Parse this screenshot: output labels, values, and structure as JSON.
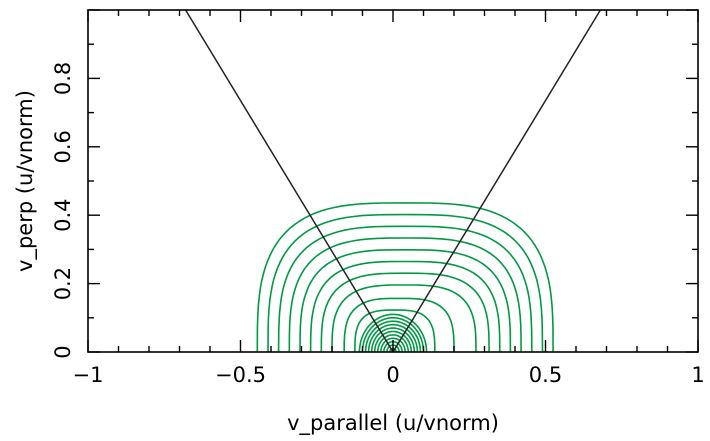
{
  "chart_data": {
    "type": "contour",
    "title": "",
    "xlabel": "v_parallel (u/vnorm)",
    "ylabel": "v_perp (u/vnorm)",
    "xlim": [
      -1,
      1
    ],
    "ylim": [
      0,
      1
    ],
    "x_ticks": [
      -1,
      -0.5,
      0,
      0.5,
      1
    ],
    "x_tick_labels": [
      "−1",
      "−0.5",
      "0",
      "0.5",
      "1"
    ],
    "y_ticks": [
      0,
      0.2,
      0.4,
      0.6,
      0.8
    ],
    "y_tick_labels": [
      "0",
      "0.2",
      "0.4",
      "0.6",
      "0.8"
    ],
    "grid": false,
    "contour_color": "#009944",
    "boundary_color": "#222222",
    "boundary_lines": [
      {
        "x": [
          0,
          -0.68
        ],
        "y": [
          0,
          1.0
        ]
      },
      {
        "x": [
          0,
          0.68
        ],
        "y": [
          0,
          1.0
        ]
      }
    ],
    "contour_levels": [
      {
        "radius": 0.01
      },
      {
        "radius": 0.02
      },
      {
        "radius": 0.03
      },
      {
        "radius": 0.04
      },
      {
        "radius": 0.05
      },
      {
        "radius": 0.06
      },
      {
        "radius": 0.07
      },
      {
        "radius": 0.08
      },
      {
        "radius": 0.09
      },
      {
        "radius": 0.1
      },
      {
        "radius": 0.11
      },
      {
        "radius": 0.125
      },
      {
        "radius": 0.16
      },
      {
        "radius": 0.2
      },
      {
        "radius": 0.235
      },
      {
        "radius": 0.27
      },
      {
        "radius": 0.305
      },
      {
        "radius": 0.34
      },
      {
        "radius": 0.375
      },
      {
        "radius": 0.41
      },
      {
        "radius": 0.445
      }
    ]
  }
}
